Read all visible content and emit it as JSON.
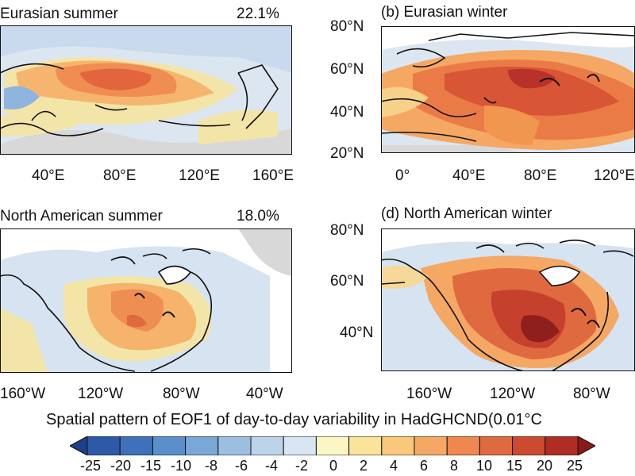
{
  "panels": [
    {
      "key": "a",
      "title": "Eurasian summer",
      "percent": "22.1%",
      "xticks": [
        "40°E",
        "80°E",
        "120°E",
        "160°E"
      ],
      "yticks": []
    },
    {
      "key": "b",
      "title": "(b) Eurasian winter",
      "percent": "",
      "xticks": [
        "0°",
        "40°E",
        "80°E",
        "120°E"
      ],
      "yticks": [
        "80°N",
        "60°N",
        "40°N",
        "20°N"
      ]
    },
    {
      "key": "c",
      "title": "North American summer",
      "percent": "18.0%",
      "xticks": [
        "160°W",
        "120°W",
        "80°W",
        "40°W"
      ],
      "yticks": []
    },
    {
      "key": "d",
      "title": "(d) North American winter",
      "percent": "",
      "xticks": [
        "160°W",
        "120°W",
        "80°W"
      ],
      "yticks": [
        "80°N",
        "60°N",
        "40°N"
      ]
    }
  ],
  "colorbar": {
    "title": "Spatial pattern of EOF1 of day-to-day variability in HadGHCND(0.01°C",
    "labels": [
      "-25",
      "-20",
      "-15",
      "-10",
      "-8",
      "-6",
      "-4",
      "-2",
      "0",
      "2",
      "4",
      "6",
      "8",
      "10",
      "15",
      "20",
      "25"
    ],
    "colors": [
      "#1f3e8c",
      "#2c5aa8",
      "#3d72bb",
      "#5a8fcb",
      "#7aa8d6",
      "#9cbfe0",
      "#bcd3ea",
      "#d8e5f2",
      "#fbf6c4",
      "#fbe39a",
      "#f9c87a",
      "#f5a863",
      "#ee8850",
      "#e06a40",
      "#cc4a30",
      "#b02d24",
      "#8a1a1a"
    ]
  }
}
